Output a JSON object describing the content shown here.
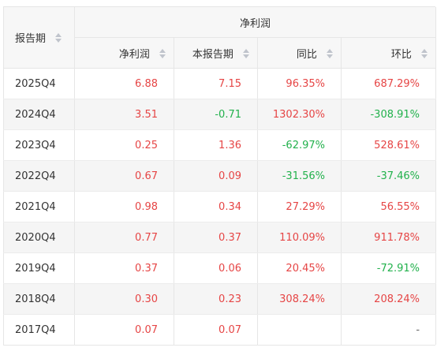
{
  "header": {
    "period": "报告期",
    "group": "净利润",
    "columns": [
      "净利润",
      "本报告期",
      "同比",
      "环比"
    ]
  },
  "rows": [
    {
      "period": "2025Q4",
      "cells": [
        "6.88",
        "7.15",
        "96.35%",
        "687.29%"
      ]
    },
    {
      "period": "2024Q4",
      "cells": [
        "3.51",
        "-0.71",
        "1302.30%",
        "-308.91%"
      ]
    },
    {
      "period": "2023Q4",
      "cells": [
        "0.25",
        "1.36",
        "-62.97%",
        "528.61%"
      ]
    },
    {
      "period": "2022Q4",
      "cells": [
        "0.67",
        "0.09",
        "-31.56%",
        "-37.46%"
      ]
    },
    {
      "period": "2021Q4",
      "cells": [
        "0.98",
        "0.34",
        "27.29%",
        "56.55%"
      ]
    },
    {
      "period": "2020Q4",
      "cells": [
        "0.77",
        "0.37",
        "110.09%",
        "911.78%"
      ]
    },
    {
      "period": "2019Q4",
      "cells": [
        "0.37",
        "0.06",
        "20.45%",
        "-72.91%"
      ]
    },
    {
      "period": "2018Q4",
      "cells": [
        "0.30",
        "0.23",
        "308.24%",
        "208.24%"
      ]
    },
    {
      "period": "2017Q4",
      "cells": [
        "0.07",
        "0.07",
        "",
        "-"
      ]
    }
  ],
  "colors": {
    "positive": "#e64545",
    "negative": "#22b14c",
    "neutral": "#666666",
    "header_bg": "#f7f7f7",
    "stripe_bg": "#f5f5f5",
    "border": "#e6e6e6"
  },
  "icons": {
    "sort": "sort-icon"
  }
}
